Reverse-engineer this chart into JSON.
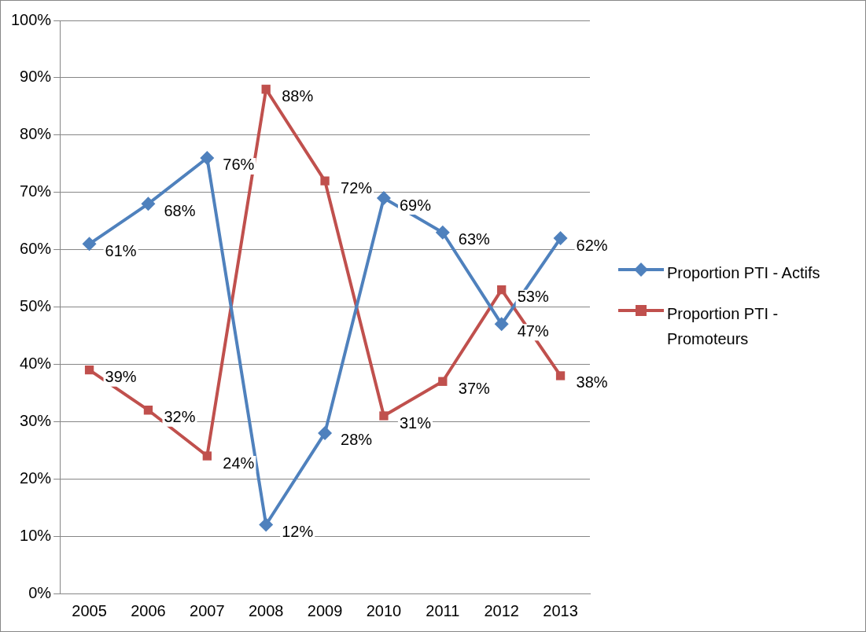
{
  "chart_data": {
    "type": "line",
    "categories": [
      "2005",
      "2006",
      "2007",
      "2008",
      "2009",
      "2010",
      "2011",
      "2012",
      "2013"
    ],
    "series": [
      {
        "name": "Proportion PTI - Actifs",
        "color": "#4f81bd",
        "marker": "diamond",
        "values": [
          61,
          68,
          76,
          12,
          28,
          69,
          63,
          47,
          62
        ],
        "value_labels": [
          "61%",
          "68%",
          "76%",
          "12%",
          "28%",
          "69%",
          "63%",
          "47%",
          "62%"
        ]
      },
      {
        "name": "Proportion PTI - Promoteurs",
        "color": "#c0504d",
        "marker": "square",
        "values": [
          39,
          32,
          24,
          88,
          72,
          31,
          37,
          53,
          38
        ],
        "value_labels": [
          "39%",
          "32%",
          "24%",
          "88%",
          "72%",
          "31%",
          "37%",
          "53%",
          "38%"
        ]
      }
    ],
    "ylim": [
      0,
      100
    ],
    "yticks": [
      {
        "value": 0,
        "label": "0%"
      },
      {
        "value": 10,
        "label": "10%"
      },
      {
        "value": 20,
        "label": "20%"
      },
      {
        "value": 30,
        "label": "30%"
      },
      {
        "value": 40,
        "label": "40%"
      },
      {
        "value": 50,
        "label": "50%"
      },
      {
        "value": 60,
        "label": "60%"
      },
      {
        "value": 70,
        "label": "70%"
      },
      {
        "value": 80,
        "label": "80%"
      },
      {
        "value": 90,
        "label": "90%"
      },
      {
        "value": 100,
        "label": "100%"
      }
    ],
    "grid": "y",
    "legend": "right",
    "line_style": "solid"
  }
}
